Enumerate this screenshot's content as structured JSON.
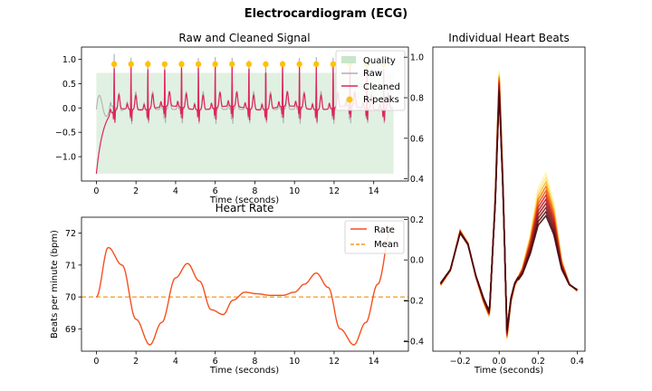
{
  "suptitle": "Electrocardiogram (ECG)",
  "colors": {
    "quality": "#c8e6c9",
    "raw": "#b0b0b0",
    "cleaned": "#e0245e",
    "rpeaks": "#ffc107",
    "rate": "#f4511e",
    "mean": "#f29b1f"
  },
  "chart_data": [
    {
      "type": "line",
      "title": "Raw and Cleaned Signal",
      "xlabel": "Time (seconds)",
      "ylabel": "",
      "xlim": [
        -0.75,
        15.75
      ],
      "ylim": [
        -1.5,
        1.25
      ],
      "xticks": [
        0,
        2,
        4,
        6,
        8,
        10,
        12,
        14
      ],
      "yticks": [
        -1.0,
        -0.5,
        0.0,
        0.5,
        1.0
      ],
      "ytick_labels": [
        "−1.0",
        "−0.5",
        "0.0",
        "0.5",
        "1.0"
      ],
      "legend": [
        "Quality",
        "Raw",
        "Cleaned",
        "R-peaks"
      ],
      "legend_loc": "upper right",
      "quality_band": {
        "x": [
          0,
          15
        ],
        "y_bottom": -1.35,
        "y_top": 0.72
      },
      "rpeaks_x": [
        0.9,
        1.75,
        2.6,
        3.45,
        4.3,
        5.15,
        6.0,
        6.85,
        7.7,
        8.55,
        9.4,
        10.25,
        11.1,
        11.95,
        12.8,
        13.65,
        14.5
      ],
      "rpeaks_y": 0.9,
      "signal_start": -1.35
    },
    {
      "type": "line",
      "title": "Heart Rate",
      "xlabel": "Time (seconds)",
      "ylabel": "Beats per minute (bpm)",
      "xlim": [
        -0.75,
        15.75
      ],
      "ylim": [
        68.3,
        72.5
      ],
      "xticks": [
        0,
        2,
        4,
        6,
        8,
        10,
        12,
        14
      ],
      "yticks": [
        69,
        70,
        71,
        72
      ],
      "legend": [
        "Rate",
        "Mean"
      ],
      "legend_loc": "upper right",
      "series": [
        {
          "name": "Rate",
          "x": [
            0,
            0.6,
            1.3,
            2.0,
            2.7,
            3.3,
            4.0,
            4.6,
            5.2,
            5.8,
            6.4,
            6.9,
            7.5,
            8.1,
            8.8,
            9.4,
            10.0,
            10.5,
            11.1,
            11.7,
            12.3,
            13.0,
            13.6,
            14.2,
            14.9
          ],
          "y": [
            70.0,
            71.55,
            71.0,
            69.3,
            68.5,
            69.2,
            70.6,
            71.05,
            70.5,
            69.6,
            69.45,
            69.9,
            70.15,
            70.1,
            70.05,
            70.05,
            70.15,
            70.4,
            70.75,
            70.3,
            69.0,
            68.5,
            69.2,
            70.4,
            72.2
          ]
        },
        {
          "name": "Mean",
          "x": [
            -0.75,
            15.75
          ],
          "y": [
            70.0,
            70.0
          ]
        }
      ]
    },
    {
      "type": "line",
      "title": "Individual Heart Beats",
      "xlabel": "Time (seconds)",
      "ylabel": "",
      "xlim": [
        -0.34,
        0.44
      ],
      "ylim": [
        -0.45,
        1.05
      ],
      "xticks": [
        -0.2,
        0.0,
        0.2,
        0.4
      ],
      "xtick_labels": [
        "−0.2",
        "0.0",
        "0.2",
        "0.4"
      ],
      "yticks": [
        -0.4,
        -0.2,
        0.0,
        0.2,
        0.4,
        0.6,
        0.8,
        1.0
      ],
      "ytick_labels": [
        "−0.4",
        "−0.2",
        "0.0",
        "0.2",
        "0.4",
        "0.6",
        "0.8",
        "1.0"
      ],
      "beat_x": [
        -0.3,
        -0.25,
        -0.2,
        -0.16,
        -0.12,
        -0.08,
        -0.05,
        -0.02,
        0.0,
        0.02,
        0.04,
        0.06,
        0.08,
        0.12,
        0.16,
        0.2,
        0.24,
        0.28,
        0.32,
        0.36,
        0.4
      ],
      "beat_y": [
        -0.12,
        -0.05,
        0.14,
        0.08,
        -0.08,
        -0.2,
        -0.27,
        0.3,
        0.88,
        0.35,
        -0.37,
        -0.2,
        -0.12,
        -0.05,
        0.08,
        0.26,
        0.32,
        0.2,
        -0.02,
        -0.12,
        -0.15
      ],
      "beat_colors": [
        "#fff3b0",
        "#fde68a",
        "#fbbf24",
        "#f97316",
        "#ea580c",
        "#dc2626",
        "#b91c1c",
        "#991b1b",
        "#7f1d1d",
        "#5c0f14",
        "#4a0a10"
      ]
    }
  ]
}
